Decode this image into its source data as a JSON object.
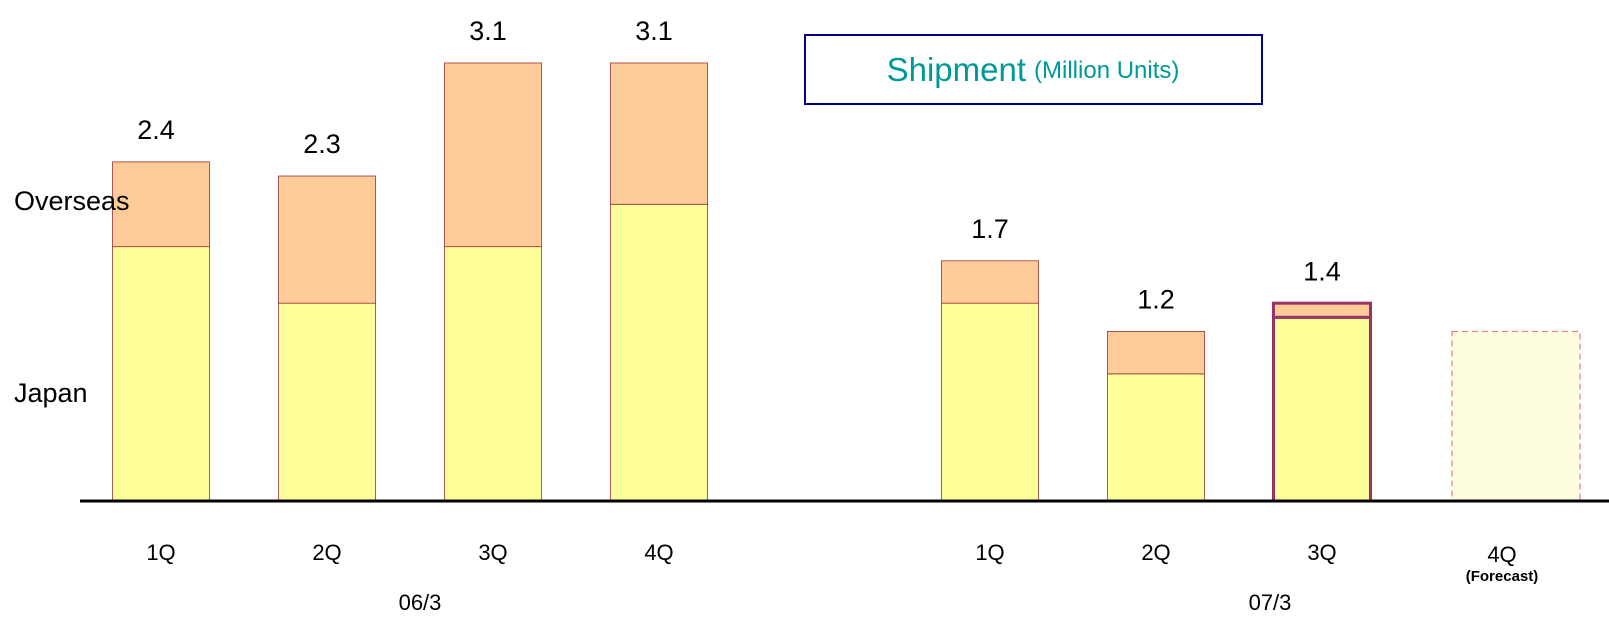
{
  "chart_data": {
    "type": "bar",
    "title": "Shipment",
    "subtitle": "(Million Units)",
    "categories": [
      "1Q",
      "2Q",
      "3Q",
      "4Q",
      "1Q",
      "2Q",
      "3Q",
      "4Q"
    ],
    "sublabels": [
      null,
      null,
      null,
      null,
      null,
      null,
      null,
      "(Forecast)"
    ],
    "groups": [
      {
        "label": "06/3",
        "size": 4
      },
      {
        "label": "07/3",
        "size": 4
      }
    ],
    "series": [
      {
        "name": "Japan",
        "color": "#ffff99",
        "values": [
          1.8,
          1.4,
          1.8,
          2.1,
          1.4,
          0.9,
          1.3,
          1.2
        ]
      },
      {
        "name": "Overseas",
        "color": "#ffcc99",
        "values": [
          0.6,
          0.9,
          1.3,
          1.0,
          0.3,
          0.3,
          0.1,
          null
        ]
      }
    ],
    "totals": [
      2.4,
      2.3,
      3.1,
      3.1,
      1.7,
      1.2,
      1.4,
      null
    ]
  }
}
